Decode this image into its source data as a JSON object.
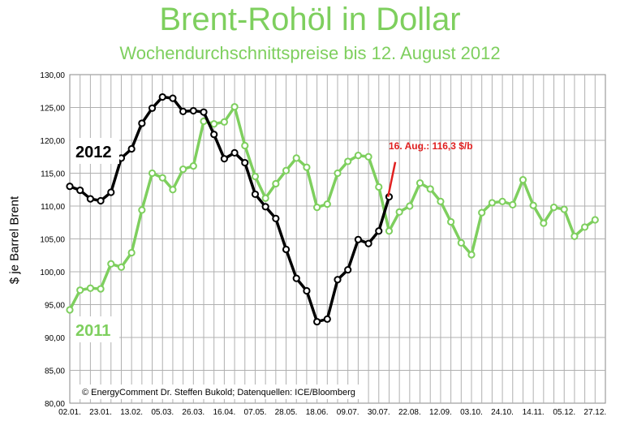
{
  "chart_data": {
    "type": "line",
    "title": "Brent-Rohöl in Dollar",
    "subtitle": "Wochendurchschnittspreise bis 12. August 2012",
    "ylabel": "$ je Barrel  Brent",
    "ylim": [
      80,
      130
    ],
    "yticks": [
      "80,00",
      "85,00",
      "90,00",
      "95,00",
      "100,00",
      "105,00",
      "110,00",
      "115,00",
      "120,00",
      "125,00",
      "130,00"
    ],
    "xticks": [
      "02.01.",
      "23.01.",
      "13.02.",
      "05.03.",
      "26.03.",
      "16.04.",
      "07.05.",
      "28.05.",
      "18.06.",
      "09.07.",
      "30.07.",
      "22.08.",
      "12.09.",
      "03.10.",
      "24.10.",
      "14.11.",
      "05.12.",
      "27.12."
    ],
    "grid": true,
    "series": [
      {
        "name": "2011",
        "color": "#7ecf5e",
        "values": [
          94.2,
          97.2,
          97.5,
          97.4,
          101.2,
          100.7,
          102.9,
          109.4,
          115.0,
          114.3,
          112.5,
          115.6,
          116.1,
          122.9,
          122.5,
          122.8,
          125.1,
          119.2,
          114.5,
          111.2,
          113.4,
          115.4,
          117.3,
          115.9,
          109.8,
          110.3,
          115.0,
          116.8,
          117.7,
          117.5,
          112.9,
          106.2,
          109.1,
          110.0,
          113.5,
          112.6,
          110.7,
          107.6,
          104.4,
          102.6,
          109.0,
          110.5,
          110.7,
          110.2,
          114.0,
          110.1,
          107.4,
          109.8,
          109.5,
          105.4,
          106.8,
          107.9
        ]
      },
      {
        "name": "2012",
        "color": "#000000",
        "values": [
          113.0,
          112.4,
          111.1,
          110.8,
          112.1,
          117.3,
          118.7,
          122.6,
          124.9,
          126.6,
          126.4,
          124.4,
          124.5,
          124.3,
          120.9,
          117.2,
          118.1,
          116.6,
          111.8,
          109.9,
          108.1,
          103.4,
          99.0,
          97.1,
          92.4,
          92.8,
          98.8,
          100.3,
          104.9,
          104.3,
          106.2,
          111.4
        ]
      }
    ],
    "annotation": {
      "label": "16. Aug.: 116,3 $/b",
      "color": "#e02020",
      "x_index": 31.6,
      "y_from": 111.4,
      "y_to": 116.7
    },
    "legend_2012": "2012",
    "legend_2011": "2011",
    "credit": "© EnergyComment Dr. Steffen Bukold; Datenquellen: ICE/Bloomberg"
  }
}
